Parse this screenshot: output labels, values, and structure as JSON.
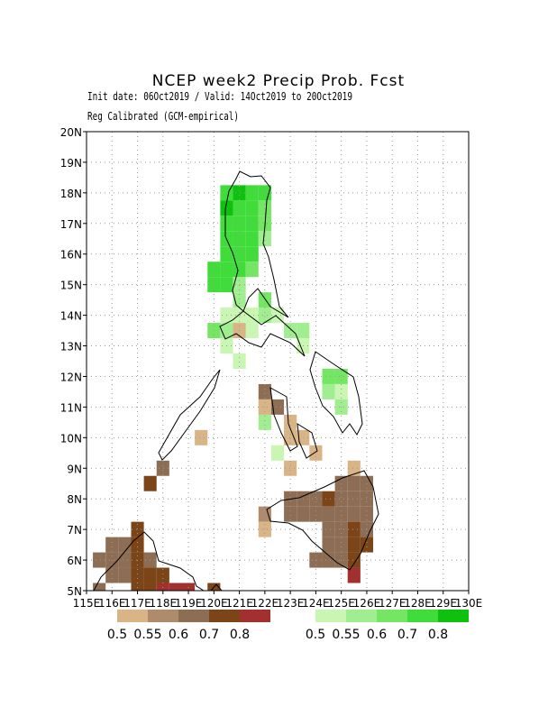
{
  "chart_data": {
    "type": "grid-map",
    "title": "NCEP week2 Precip Prob. Fcst",
    "subtitle": "Init date: 06Oct2019 / Valid: 14Oct2019 to 20Oct2019",
    "note": "Reg Calibrated (GCM-empirical)",
    "xlim": [
      115,
      130
    ],
    "ylim": [
      5,
      20
    ],
    "xticks": [
      {
        "value": 115,
        "label": "115E"
      },
      {
        "value": 116,
        "label": "116E"
      },
      {
        "value": 117,
        "label": "117E"
      },
      {
        "value": 118,
        "label": "118E"
      },
      {
        "value": 119,
        "label": "119E"
      },
      {
        "value": 120,
        "label": "120E"
      },
      {
        "value": 121,
        "label": "121E"
      },
      {
        "value": 122,
        "label": "122E"
      },
      {
        "value": 123,
        "label": "123E"
      },
      {
        "value": 124,
        "label": "124E"
      },
      {
        "value": 125,
        "label": "125E"
      },
      {
        "value": 126,
        "label": "126E"
      },
      {
        "value": 127,
        "label": "127E"
      },
      {
        "value": 128,
        "label": "128E"
      },
      {
        "value": 129,
        "label": "129E"
      },
      {
        "value": 130,
        "label": "130E"
      }
    ],
    "yticks": [
      {
        "value": 5,
        "label": "5N"
      },
      {
        "value": 6,
        "label": "6N"
      },
      {
        "value": 7,
        "label": "7N"
      },
      {
        "value": 8,
        "label": "8N"
      },
      {
        "value": 9,
        "label": "9N"
      },
      {
        "value": 10,
        "label": "10N"
      },
      {
        "value": 11,
        "label": "11N"
      },
      {
        "value": 12,
        "label": "12N"
      },
      {
        "value": 13,
        "label": "13N"
      },
      {
        "value": 14,
        "label": "14N"
      },
      {
        "value": 15,
        "label": "15N"
      },
      {
        "value": 16,
        "label": "16N"
      },
      {
        "value": 17,
        "label": "17N"
      },
      {
        "value": 18,
        "label": "18N"
      },
      {
        "value": 19,
        "label": "19N"
      },
      {
        "value": 20,
        "label": "20N"
      }
    ],
    "grid": true,
    "legend": {
      "dry": {
        "levels": [
          0.5,
          0.55,
          0.6,
          0.7,
          0.8
        ],
        "colors": [
          "#d9b487",
          "#ae8b6a",
          "#8d6e55",
          "#7c4517",
          "#a1302e"
        ]
      },
      "wet": {
        "levels": [
          0.5,
          0.55,
          0.6,
          0.7,
          0.8
        ],
        "colors": [
          "#c9f6b3",
          "#a0ee90",
          "#74e664",
          "#40dc3a",
          "#0fc10f"
        ]
      }
    },
    "wet_cells": [
      [
        120.5,
        18,
        0.7
      ],
      [
        121,
        18,
        0.8
      ],
      [
        121.5,
        18,
        0.7
      ],
      [
        122,
        18,
        0.7
      ],
      [
        120.5,
        17.5,
        0.8
      ],
      [
        121,
        17.5,
        0.7
      ],
      [
        121.5,
        17.5,
        0.7
      ],
      [
        122,
        17.5,
        0.6
      ],
      [
        120.5,
        17,
        0.7
      ],
      [
        121,
        17,
        0.7
      ],
      [
        121.5,
        17,
        0.7
      ],
      [
        122,
        17,
        0.6
      ],
      [
        120.5,
        16.5,
        0.7
      ],
      [
        121,
        16.5,
        0.7
      ],
      [
        121.5,
        16.5,
        0.7
      ],
      [
        122,
        16.5,
        0.55
      ],
      [
        120.5,
        16,
        0.7
      ],
      [
        121,
        16,
        0.7
      ],
      [
        121.5,
        16,
        0.7
      ],
      [
        120,
        15.5,
        0.7
      ],
      [
        120.5,
        15.5,
        0.7
      ],
      [
        121,
        15.5,
        0.7
      ],
      [
        121.5,
        15.5,
        0.6
      ],
      [
        120,
        15,
        0.7
      ],
      [
        120.5,
        15,
        0.7
      ],
      [
        121,
        15,
        0.55
      ],
      [
        121,
        14.5,
        0.55
      ],
      [
        122,
        14.5,
        0.6
      ],
      [
        120.5,
        14,
        0.5
      ],
      [
        121,
        14,
        0.5
      ],
      [
        121.5,
        14,
        0.5
      ],
      [
        122,
        14,
        0.55
      ],
      [
        122.5,
        14,
        0.5
      ],
      [
        120,
        13.5,
        0.6
      ],
      [
        120.5,
        13.5,
        0.55
      ],
      [
        121.5,
        13.5,
        0.5
      ],
      [
        123,
        13.5,
        0.55
      ],
      [
        123.5,
        13.5,
        0.55
      ],
      [
        120.5,
        13,
        0.5
      ],
      [
        123.5,
        13,
        0.5
      ],
      [
        121,
        12.5,
        0.5
      ],
      [
        124.5,
        12,
        0.6
      ],
      [
        125,
        12,
        0.6
      ],
      [
        124.5,
        11.5,
        0.55
      ],
      [
        125,
        11.5,
        0.5
      ],
      [
        122,
        11,
        0.5
      ],
      [
        125,
        11,
        0.55
      ],
      [
        122,
        10.5,
        0.55
      ],
      [
        123,
        10,
        0.5
      ],
      [
        122.5,
        9.5,
        0.5
      ]
    ],
    "dry_cells": [
      [
        121,
        13.5,
        0.5
      ],
      [
        122,
        11.5,
        0.6
      ],
      [
        122,
        11,
        0.5
      ],
      [
        122.5,
        11,
        0.6
      ],
      [
        123,
        10.5,
        0.5
      ],
      [
        123,
        10,
        0.5
      ],
      [
        123.5,
        10,
        0.5
      ],
      [
        124,
        9.5,
        0.5
      ],
      [
        123,
        9,
        0.5
      ],
      [
        125.5,
        9,
        0.5
      ],
      [
        125,
        8.5,
        0.6
      ],
      [
        125.5,
        8.5,
        0.6
      ],
      [
        126,
        8.5,
        0.6
      ],
      [
        123,
        8,
        0.6
      ],
      [
        123.5,
        8,
        0.6
      ],
      [
        124,
        8,
        0.6
      ],
      [
        124.5,
        8,
        0.7
      ],
      [
        125,
        8,
        0.6
      ],
      [
        125.5,
        8,
        0.6
      ],
      [
        126,
        8,
        0.6
      ],
      [
        122,
        7.5,
        0.55
      ],
      [
        123,
        7.5,
        0.6
      ],
      [
        123.5,
        7.5,
        0.6
      ],
      [
        124,
        7.5,
        0.6
      ],
      [
        124.5,
        7.5,
        0.6
      ],
      [
        125,
        7.5,
        0.6
      ],
      [
        125.5,
        7.5,
        0.6
      ],
      [
        126,
        7.5,
        0.6
      ],
      [
        122,
        7,
        0.5
      ],
      [
        124.5,
        7,
        0.6
      ],
      [
        125,
        7,
        0.6
      ],
      [
        125.5,
        7,
        0.7
      ],
      [
        126,
        7,
        0.6
      ],
      [
        124.5,
        6.5,
        0.6
      ],
      [
        125,
        6.5,
        0.6
      ],
      [
        125.5,
        6.5,
        0.7
      ],
      [
        126,
        6.5,
        0.7
      ],
      [
        124,
        6,
        0.6
      ],
      [
        124.5,
        6,
        0.6
      ],
      [
        125,
        6,
        0.6
      ],
      [
        125.5,
        6,
        0.7
      ],
      [
        125.5,
        5.5,
        0.8
      ],
      [
        118,
        9,
        0.6
      ],
      [
        117.5,
        8.5,
        0.7
      ],
      [
        119.5,
        10,
        0.5
      ],
      [
        117,
        7,
        0.7
      ],
      [
        116,
        6.5,
        0.6
      ],
      [
        116.5,
        6.5,
        0.6
      ],
      [
        117,
        6.5,
        0.7
      ],
      [
        115.5,
        6,
        0.6
      ],
      [
        116,
        6,
        0.6
      ],
      [
        116.5,
        6,
        0.6
      ],
      [
        117,
        6,
        0.7
      ],
      [
        117.5,
        6,
        0.6
      ],
      [
        116,
        5.5,
        0.6
      ],
      [
        116.5,
        5.5,
        0.6
      ],
      [
        117,
        5.5,
        0.7
      ],
      [
        117.5,
        5.5,
        0.7
      ],
      [
        118,
        5.5,
        0.7
      ],
      [
        115.5,
        5,
        0.6
      ],
      [
        117,
        5,
        0.7
      ],
      [
        117.5,
        5,
        0.7
      ],
      [
        118,
        5,
        0.8
      ],
      [
        118.5,
        5,
        0.8
      ],
      [
        119,
        5,
        0.8
      ],
      [
        120,
        5,
        0.7
      ]
    ]
  }
}
